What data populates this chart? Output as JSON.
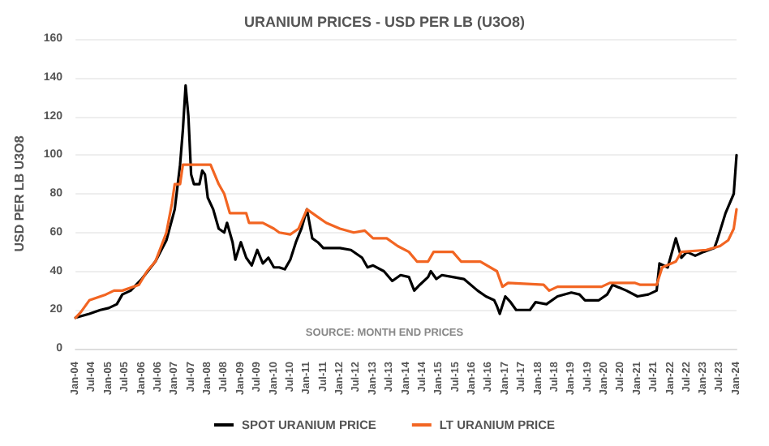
{
  "chart_data": {
    "type": "line",
    "title": "URANIUM PRICES - USD PER LB (U3O8)",
    "ylabel": "USD PER LB U3O8",
    "annotations": [
      "SOURCE: MONTH END PRICES"
    ],
    "series": [
      {
        "name": "SPOT URANIUM PRICE",
        "color": "#000000",
        "x": [
          "2004-01",
          "2004-06",
          "2004-10",
          "2005-01",
          "2005-04",
          "2005-06",
          "2005-09",
          "2006-01",
          "2006-06",
          "2006-10",
          "2007-01",
          "2007-03",
          "2007-04",
          "2007-05",
          "2007-06",
          "2007-07",
          "2007-08",
          "2007-10",
          "2007-11",
          "2007-12",
          "2008-01",
          "2008-03",
          "2008-05",
          "2008-07",
          "2008-08",
          "2008-10",
          "2008-11",
          "2009-01",
          "2009-03",
          "2009-05",
          "2009-07",
          "2009-09",
          "2009-11",
          "2010-01",
          "2010-03",
          "2010-05",
          "2010-07",
          "2010-09",
          "2010-11",
          "2011-01",
          "2011-03",
          "2011-05",
          "2011-07",
          "2011-10",
          "2012-01",
          "2012-05",
          "2012-09",
          "2012-11",
          "2013-01",
          "2013-05",
          "2013-08",
          "2013-11",
          "2014-02",
          "2014-04",
          "2014-06",
          "2014-09",
          "2014-10",
          "2014-12",
          "2015-02",
          "2015-06",
          "2015-10",
          "2016-03",
          "2016-06",
          "2016-09",
          "2016-10",
          "2016-11",
          "2017-01",
          "2017-03",
          "2017-05",
          "2017-10",
          "2017-12",
          "2018-04",
          "2018-08",
          "2019-01",
          "2019-04",
          "2019-06",
          "2019-11",
          "2020-02",
          "2020-04",
          "2020-09",
          "2021-01",
          "2021-05",
          "2021-08",
          "2021-09",
          "2021-12",
          "2022-03",
          "2022-05",
          "2022-07",
          "2022-10",
          "2023-01",
          "2023-05",
          "2023-06",
          "2023-09",
          "2023-12",
          "2024-01"
        ],
        "values": [
          16,
          18,
          20,
          21,
          23,
          28,
          30,
          36,
          45,
          56,
          72,
          95,
          113,
          136,
          120,
          90,
          85,
          85,
          92,
          90,
          78,
          72,
          62,
          60,
          65,
          55,
          46,
          55,
          47,
          43,
          51,
          44,
          47,
          42,
          42,
          41,
          46,
          55,
          62,
          72,
          57,
          55,
          52,
          52,
          52,
          51,
          47,
          42,
          43,
          40,
          35,
          38,
          37,
          30,
          33,
          37,
          40,
          36,
          38,
          37,
          36,
          30,
          27,
          25,
          22,
          18,
          27,
          24,
          20,
          20,
          24,
          23,
          27,
          29,
          28,
          25,
          25,
          28,
          33,
          30,
          27,
          28,
          30,
          44,
          42,
          57,
          47,
          50,
          48,
          50,
          52,
          56,
          70,
          80,
          100
        ]
      },
      {
        "name": "LT URANIUM PRICE",
        "color": "#f26522",
        "x": [
          "2004-01",
          "2004-03",
          "2004-06",
          "2004-12",
          "2005-03",
          "2005-06",
          "2005-12",
          "2006-03",
          "2006-06",
          "2006-10",
          "2006-12",
          "2007-01",
          "2007-03",
          "2007-04",
          "2008-02",
          "2008-05",
          "2008-07",
          "2008-09",
          "2009-03",
          "2009-04",
          "2009-09",
          "2010-01",
          "2010-03",
          "2010-07",
          "2010-10",
          "2011-01",
          "2011-05",
          "2011-08",
          "2012-01",
          "2012-06",
          "2012-10",
          "2013-01",
          "2013-06",
          "2013-10",
          "2014-02",
          "2014-05",
          "2014-09",
          "2014-11",
          "2015-06",
          "2015-09",
          "2016-04",
          "2016-10",
          "2016-12",
          "2017-02",
          "2018-03",
          "2018-05",
          "2018-08",
          "2019-12",
          "2020-03",
          "2020-12",
          "2021-02",
          "2021-08",
          "2021-10",
          "2022-03",
          "2022-05",
          "2023-02",
          "2023-07",
          "2023-10",
          "2023-12",
          "2024-01"
        ],
        "values": [
          16,
          19,
          25,
          28,
          30,
          30,
          33,
          40,
          45,
          60,
          75,
          85,
          85,
          95,
          95,
          85,
          80,
          70,
          70,
          65,
          65,
          62,
          60,
          59,
          62,
          72,
          68,
          65,
          62,
          60,
          61,
          57,
          57,
          53,
          50,
          45,
          45,
          50,
          50,
          45,
          45,
          40,
          32,
          34,
          33,
          30,
          32,
          32,
          34,
          34,
          33,
          33,
          42,
          45,
          50,
          51,
          53,
          56,
          62,
          72
        ]
      }
    ],
    "xlim": [
      "2004-01",
      "2024-01"
    ],
    "xticks": [
      {
        "value": "2004-01",
        "label": "Jan-04"
      },
      {
        "value": "2004-07",
        "label": "Jul-04"
      },
      {
        "value": "2005-01",
        "label": "Jan-05"
      },
      {
        "value": "2005-07",
        "label": "Jul-05"
      },
      {
        "value": "2006-01",
        "label": "Jan-06"
      },
      {
        "value": "2006-07",
        "label": "Jul-06"
      },
      {
        "value": "2007-01",
        "label": "Jan-07"
      },
      {
        "value": "2007-07",
        "label": "Jul-07"
      },
      {
        "value": "2008-01",
        "label": "Jan-08"
      },
      {
        "value": "2008-07",
        "label": "Jul-08"
      },
      {
        "value": "2009-01",
        "label": "Jan-09"
      },
      {
        "value": "2009-07",
        "label": "Jul-09"
      },
      {
        "value": "2010-01",
        "label": "Jan-10"
      },
      {
        "value": "2010-07",
        "label": "Jul-10"
      },
      {
        "value": "2011-01",
        "label": "Jan-11"
      },
      {
        "value": "2011-07",
        "label": "Jul-11"
      },
      {
        "value": "2012-01",
        "label": "Jan-12"
      },
      {
        "value": "2012-07",
        "label": "Jul-12"
      },
      {
        "value": "2013-01",
        "label": "Jan-13"
      },
      {
        "value": "2013-07",
        "label": "Jul-13"
      },
      {
        "value": "2014-01",
        "label": "Jan-14"
      },
      {
        "value": "2014-07",
        "label": "Jul-14"
      },
      {
        "value": "2015-01",
        "label": "Jan-15"
      },
      {
        "value": "2015-07",
        "label": "Jul-15"
      },
      {
        "value": "2016-01",
        "label": "Jan-16"
      },
      {
        "value": "2016-07",
        "label": "Jul-16"
      },
      {
        "value": "2017-01",
        "label": "Jan-17"
      },
      {
        "value": "2017-07",
        "label": "Jul-17"
      },
      {
        "value": "2018-01",
        "label": "Jan-18"
      },
      {
        "value": "2018-07",
        "label": "Jul-18"
      },
      {
        "value": "2019-01",
        "label": "Jan-19"
      },
      {
        "value": "2019-07",
        "label": "Jul-19"
      },
      {
        "value": "2020-01",
        "label": "Jan-20"
      },
      {
        "value": "2020-07",
        "label": "Jul-20"
      },
      {
        "value": "2021-01",
        "label": "Jan-21"
      },
      {
        "value": "2021-07",
        "label": "Jul-21"
      },
      {
        "value": "2022-01",
        "label": "Jan-22"
      },
      {
        "value": "2022-07",
        "label": "Jul-22"
      },
      {
        "value": "2023-01",
        "label": "Jan-23"
      },
      {
        "value": "2023-07",
        "label": "Jul-23"
      },
      {
        "value": "2024-01",
        "label": "Jan-24"
      }
    ],
    "ylim": [
      0,
      160
    ],
    "yticks": [
      0,
      20,
      40,
      60,
      80,
      100,
      120,
      140,
      160
    ],
    "grid": "y",
    "legend": "bottom",
    "marker": "none",
    "line_style": "solid"
  }
}
